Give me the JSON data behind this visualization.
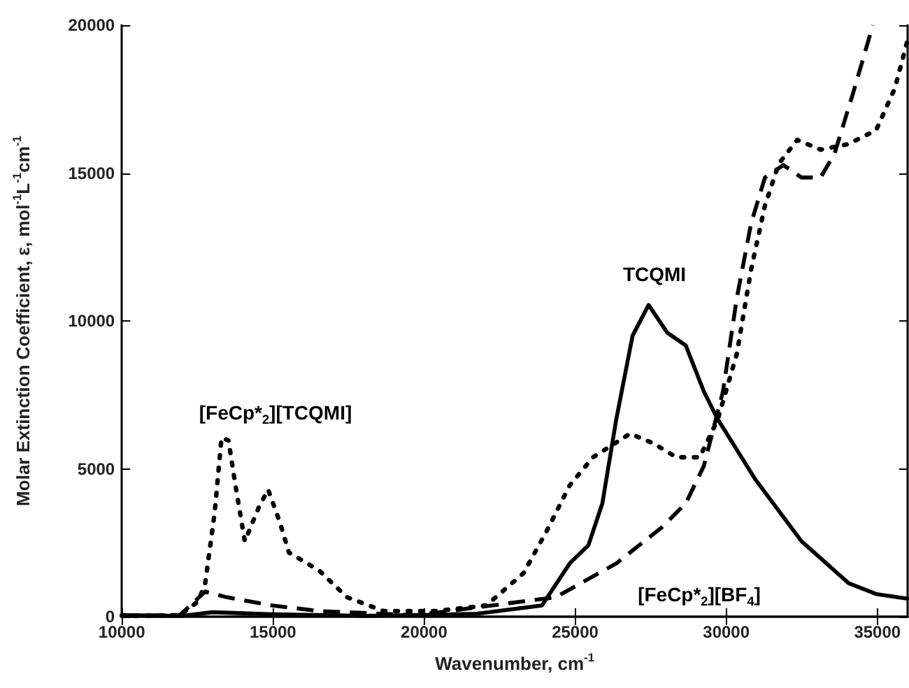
{
  "chart_data": {
    "type": "line",
    "xlabel": "Wavenumber, cm$^{-1}$",
    "ylabel": "Molar Extinction Coefficient, ε, mol$^{-1}$L$^{-1}$cm$^{-1}$",
    "xlim": [
      10000,
      36000
    ],
    "xticks": [
      10000,
      15000,
      20000,
      25000,
      30000,
      35000
    ],
    "ylim": [
      0,
      20000
    ],
    "yticks": [
      0,
      5000,
      10000,
      15000,
      20000
    ],
    "marker": "none",
    "annotations": [
      "[FeCp*$_{2}$][TCQMI]",
      "TCQMI",
      "[FeCp*$_{2}$][BF$_{4}$]"
    ],
    "series": [
      {
        "color": "#000000",
        "line_style": "solid",
        "x": [
          10000,
          12000,
          13000,
          15000,
          18000,
          20000,
          21750,
          23900,
          24820,
          25440,
          25900,
          26360,
          26900,
          27430,
          28050,
          28660,
          29260,
          29720,
          30970,
          32490,
          34050,
          34980,
          36000
        ],
        "values": [
          50,
          30,
          150,
          80,
          30,
          60,
          100,
          380,
          1800,
          2420,
          3830,
          6670,
          9500,
          10540,
          9600,
          9170,
          7610,
          6670,
          4630,
          2550,
          1130,
          760,
          610
        ]
      },
      {
        "color": "#000000",
        "line_style": "dashed",
        "x": [
          10000,
          11920,
          12760,
          13460,
          14980,
          16540,
          19750,
          24360,
          26360,
          27880,
          28660,
          29260,
          29890,
          30350,
          30820,
          31280,
          31890,
          32490,
          33120,
          33580,
          34190,
          34850
        ],
        "values": [
          30,
          50,
          850,
          660,
          380,
          190,
          50,
          660,
          1800,
          3030,
          3830,
          5100,
          7610,
          10780,
          13290,
          14850,
          15270,
          14850,
          14850,
          15650,
          17680,
          20000
        ]
      },
      {
        "color": "#000000",
        "line_style": "dotted",
        "x": [
          10000,
          11920,
          12530,
          12760,
          13070,
          13300,
          13530,
          13760,
          14070,
          14530,
          14840,
          15220,
          15530,
          16530,
          17450,
          18660,
          20370,
          22060,
          23290,
          24050,
          24820,
          25590,
          26820,
          27590,
          28350,
          29120,
          29720,
          30350,
          30820,
          31280,
          31740,
          32350,
          33120,
          34040,
          34960,
          35580,
          36000
        ],
        "values": [
          30,
          50,
          520,
          1130,
          3500,
          6050,
          5960,
          4440,
          2550,
          3690,
          4300,
          3220,
          2170,
          1560,
          660,
          190,
          190,
          380,
          1470,
          2880,
          4440,
          5390,
          6190,
          5860,
          5390,
          5390,
          6670,
          8890,
          11730,
          13900,
          15320,
          16120,
          15790,
          15980,
          16450,
          17870,
          19500
        ]
      }
    ]
  }
}
